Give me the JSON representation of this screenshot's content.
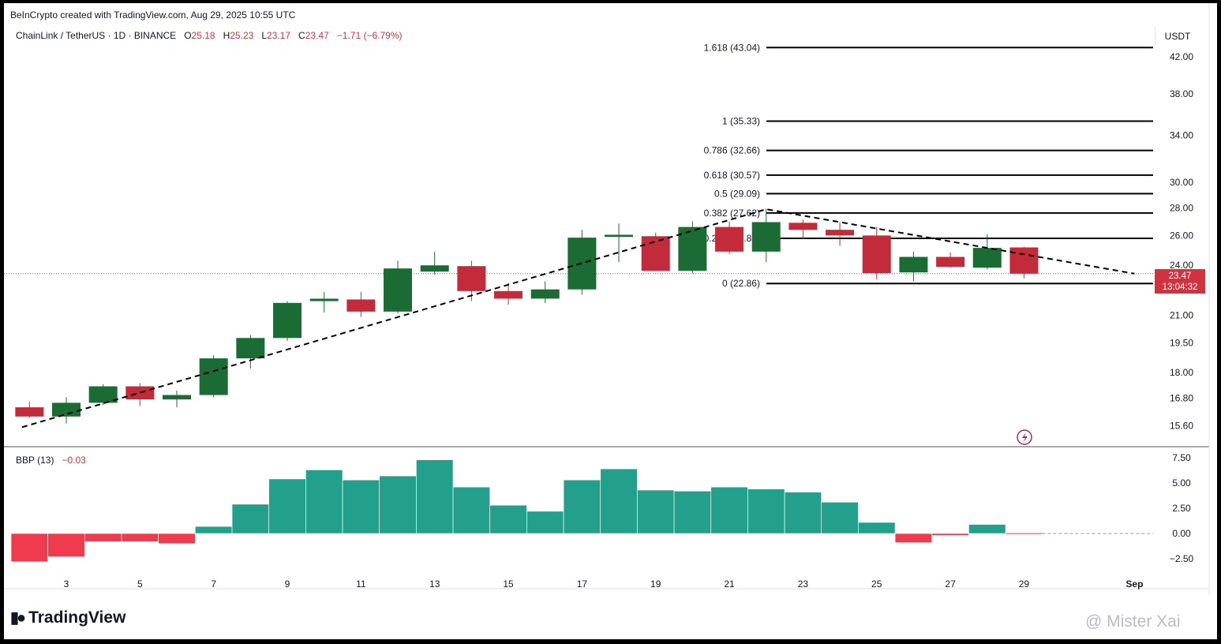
{
  "attribution": "BeInCrypto created with TradingView.com, Aug 29, 2025 10:55 UTC",
  "symbol": {
    "name": "ChainLink / TetherUS · 1D · BINANCE",
    "o_label": "O",
    "o": "25.18",
    "h_label": "H",
    "h": "25.23",
    "l_label": "L",
    "l": "23.17",
    "c_label": "C",
    "c": "23.47",
    "change": "−1.71 (−6.79%)"
  },
  "currency": "USDT",
  "price_tag": {
    "price": "23.47",
    "countdown": "13:04:32"
  },
  "indicator": {
    "name": "BBP (13)",
    "value": "−0.03"
  },
  "logo_text": "TradingView",
  "watermark": "@ Mister Xai",
  "colors": {
    "up": "#1a6b34",
    "down": "#c42b3a",
    "bbp_pos": "#22a08b",
    "bbp_neg": "#ef3b4d",
    "line": "#000000"
  },
  "chart_data": [
    {
      "type": "candlestick",
      "title": "ChainLink / TetherUS · 1D · BINANCE",
      "y_scale": "log",
      "ylim": [
        15.2,
        45.5
      ],
      "y_ticks": [
        "42.00",
        "38.00",
        "34.00",
        "30.00",
        "28.00",
        "26.00",
        "24.00",
        "21.00",
        "19.50",
        "18.00",
        "16.80",
        "15.60"
      ],
      "x_ticks": [
        "3",
        "5",
        "7",
        "9",
        "11",
        "13",
        "15",
        "17",
        "19",
        "21",
        "23",
        "25",
        "27",
        "29",
        "Sep"
      ],
      "x_tick_days": [
        3,
        5,
        7,
        9,
        11,
        13,
        15,
        17,
        19,
        21,
        23,
        25,
        27,
        29,
        32
      ],
      "candles": [
        {
          "day": 2,
          "o": 16.4,
          "h": 16.65,
          "l": 15.95,
          "c": 16.0
        },
        {
          "day": 3,
          "o": 16.0,
          "h": 16.85,
          "l": 15.7,
          "c": 16.6
        },
        {
          "day": 4,
          "o": 16.6,
          "h": 17.45,
          "l": 16.5,
          "c": 17.35
        },
        {
          "day": 5,
          "o": 17.35,
          "h": 17.5,
          "l": 16.45,
          "c": 16.75
        },
        {
          "day": 6,
          "o": 16.75,
          "h": 17.15,
          "l": 16.4,
          "c": 16.95
        },
        {
          "day": 7,
          "o": 16.95,
          "h": 18.85,
          "l": 16.85,
          "c": 18.7
        },
        {
          "day": 8,
          "o": 18.7,
          "h": 19.9,
          "l": 18.2,
          "c": 19.75
        },
        {
          "day": 9,
          "o": 19.75,
          "h": 21.8,
          "l": 19.6,
          "c": 21.7
        },
        {
          "day": 10,
          "o": 21.85,
          "h": 22.35,
          "l": 21.15,
          "c": 21.9
        },
        {
          "day": 11,
          "o": 21.9,
          "h": 22.35,
          "l": 20.9,
          "c": 21.2
        },
        {
          "day": 12,
          "o": 21.2,
          "h": 24.3,
          "l": 21.1,
          "c": 23.8
        },
        {
          "day": 13,
          "o": 23.6,
          "h": 24.9,
          "l": 23.4,
          "c": 24.0
        },
        {
          "day": 14,
          "o": 23.95,
          "h": 24.3,
          "l": 21.8,
          "c": 22.4
        },
        {
          "day": 15,
          "o": 22.4,
          "h": 22.9,
          "l": 21.6,
          "c": 21.95
        },
        {
          "day": 16,
          "o": 21.95,
          "h": 23.0,
          "l": 21.7,
          "c": 22.5
        },
        {
          "day": 17,
          "o": 22.5,
          "h": 26.4,
          "l": 22.2,
          "c": 25.85
        },
        {
          "day": 18,
          "o": 25.9,
          "h": 26.85,
          "l": 24.2,
          "c": 26.05
        },
        {
          "day": 19,
          "o": 25.95,
          "h": 26.2,
          "l": 23.65,
          "c": 23.65
        },
        {
          "day": 20,
          "o": 23.65,
          "h": 27.0,
          "l": 23.5,
          "c": 26.6
        },
        {
          "day": 21,
          "o": 26.6,
          "h": 27.0,
          "l": 24.75,
          "c": 24.9
        },
        {
          "day": 22,
          "o": 24.9,
          "h": 27.95,
          "l": 24.2,
          "c": 26.95
        },
        {
          "day": 23,
          "o": 26.9,
          "h": 27.15,
          "l": 25.75,
          "c": 26.4
        },
        {
          "day": 24,
          "o": 26.4,
          "h": 26.95,
          "l": 25.3,
          "c": 26.0
        },
        {
          "day": 25,
          "o": 26.0,
          "h": 26.6,
          "l": 23.1,
          "c": 23.5
        },
        {
          "day": 26,
          "o": 23.55,
          "h": 24.9,
          "l": 23.0,
          "c": 24.55
        },
        {
          "day": 27,
          "o": 24.55,
          "h": 24.85,
          "l": 23.85,
          "c": 23.9
        },
        {
          "day": 28,
          "o": 23.85,
          "h": 26.1,
          "l": 23.75,
          "c": 25.15
        },
        {
          "day": 29,
          "o": 25.18,
          "h": 25.23,
          "l": 23.17,
          "c": 23.47
        }
      ],
      "fibonacci": [
        {
          "label": "1.618 (43.04)",
          "value": 43.04
        },
        {
          "label": "1 (35.33)",
          "value": 35.33
        },
        {
          "label": "0.786 (32.66)",
          "value": 32.66
        },
        {
          "label": "0.618 (30.57)",
          "value": 30.57
        },
        {
          "label": "0.5 (29.09)",
          "value": 29.09
        },
        {
          "label": "0.382 (27.62)",
          "value": 27.62
        },
        {
          "label": "0.236 (25.80)",
          "value": 25.8
        },
        {
          "label": "0 (22.86)",
          "value": 22.86
        }
      ],
      "trend_line": [
        {
          "day": 1.8,
          "price": 15.55
        },
        {
          "day": 22.0,
          "price": 27.9
        },
        {
          "day": 32.0,
          "price": 23.47
        }
      ],
      "last_price": 23.47
    },
    {
      "type": "bar",
      "title": "BBP (13)",
      "ylim": [
        -3.5,
        8.5
      ],
      "y_ticks": [
        "7.50",
        "5.00",
        "2.50",
        "0.00",
        "−2.50"
      ],
      "x_days": [
        2,
        3,
        4,
        5,
        6,
        7,
        8,
        9,
        10,
        11,
        12,
        13,
        14,
        15,
        16,
        17,
        18,
        19,
        20,
        21,
        22,
        23,
        24,
        25,
        26,
        27,
        28,
        29
      ],
      "values": [
        -2.8,
        -2.3,
        -0.8,
        -0.8,
        -1.0,
        0.7,
        2.9,
        5.4,
        6.3,
        5.3,
        5.7,
        7.3,
        4.6,
        2.8,
        2.2,
        5.3,
        6.4,
        4.3,
        4.2,
        4.6,
        4.4,
        4.1,
        3.1,
        1.1,
        -0.9,
        -0.2,
        0.9,
        -0.03
      ]
    }
  ]
}
